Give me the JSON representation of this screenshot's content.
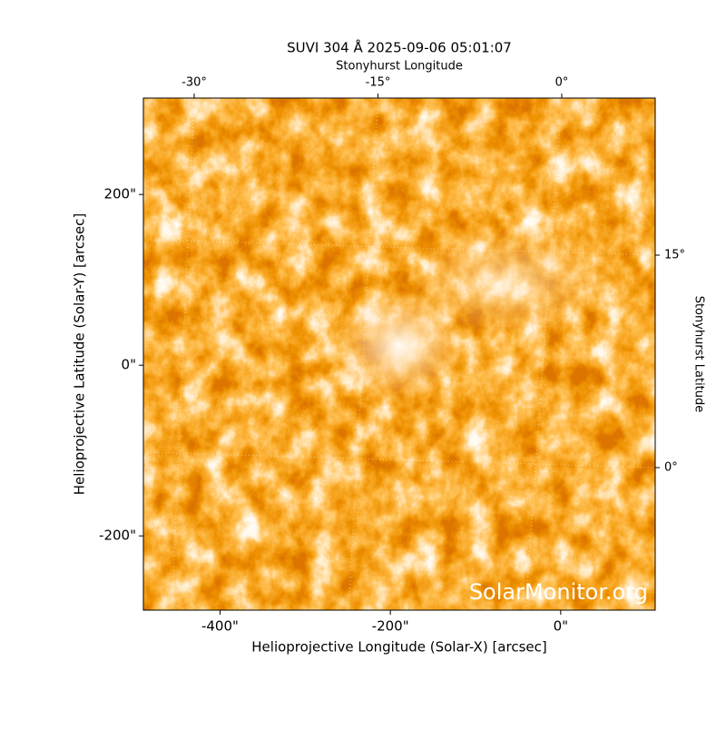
{
  "chart_data": {
    "type": "image",
    "title": "SUVI 304 Å 2025-09-06 05:01:07",
    "top_axis_label": "Stonyhurst Longitude",
    "right_axis_label": "Stonyhurst Latitude",
    "xlabel": "Helioprojective Longitude (Solar-X) [arcsec]",
    "ylabel": "Helioprojective Latitude (Solar-Y) [arcsec]",
    "watermark": "SolarMonitor.org",
    "xlim": [
      -490,
      111
    ],
    "ylim": [
      -287,
      313
    ],
    "xticks": [
      {
        "value": -400,
        "label": "-400\""
      },
      {
        "value": -200,
        "label": "-200\""
      },
      {
        "value": 0,
        "label": "0\""
      }
    ],
    "yticks": [
      {
        "value": 200,
        "label": "200\""
      },
      {
        "value": 0,
        "label": "0\""
      },
      {
        "value": -200,
        "label": "-200\""
      }
    ],
    "lon_ticks": [
      {
        "value": -30,
        "label": "-30°"
      },
      {
        "value": -15,
        "label": "-15°"
      },
      {
        "value": 0,
        "label": "0°"
      }
    ],
    "lat_ticks": [
      {
        "value": 15,
        "label": "15°"
      },
      {
        "value": 0,
        "label": "0°"
      }
    ]
  }
}
